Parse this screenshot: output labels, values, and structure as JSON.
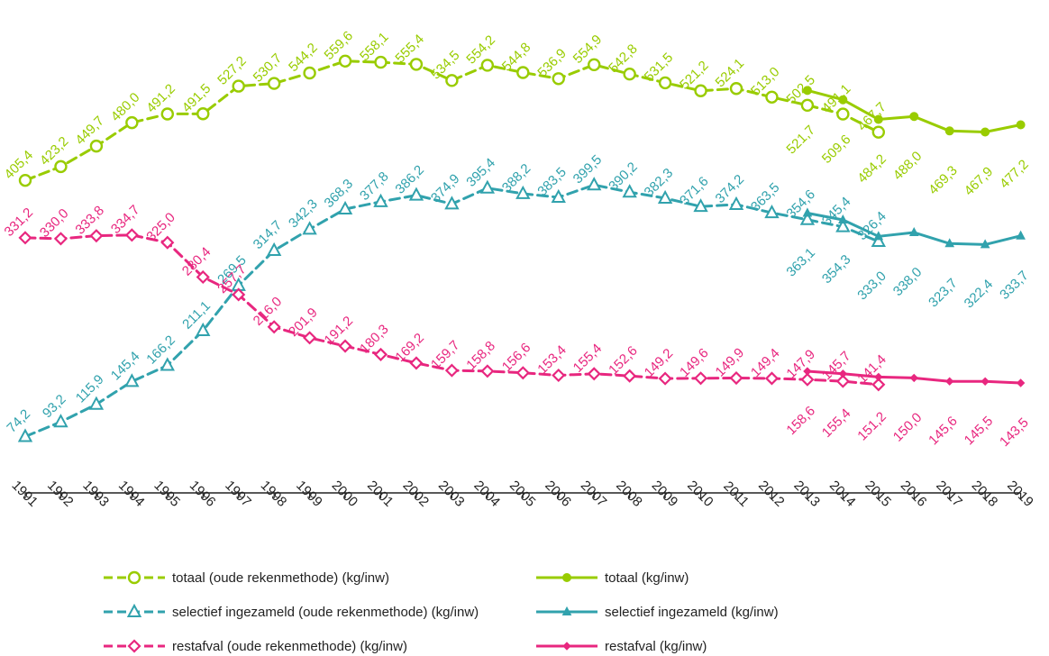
{
  "chart_data": {
    "type": "line",
    "title": "",
    "xlabel": "",
    "ylabel": "",
    "ylim": [
      0,
      600
    ],
    "grid": false,
    "legend_position": "bottom",
    "x": [
      "1991",
      "1992",
      "1993",
      "1994",
      "1995",
      "1996",
      "1997",
      "1998",
      "1999",
      "2000",
      "2001",
      "2002",
      "2003",
      "2004",
      "2005",
      "2006",
      "2007",
      "2008",
      "2009",
      "2010",
      "2011",
      "2012",
      "2013",
      "2014",
      "2015",
      "2016",
      "2017",
      "2018",
      "2019"
    ],
    "series": [
      {
        "name": "totaal (oude rekenmethode) (kg/inw)",
        "color": "#99cc00",
        "dashed": true,
        "marker": "circle",
        "label_side": "above",
        "x": [
          "1991",
          "1992",
          "1993",
          "1994",
          "1995",
          "1996",
          "1997",
          "1998",
          "1999",
          "2000",
          "2001",
          "2002",
          "2003",
          "2004",
          "2005",
          "2006",
          "2007",
          "2008",
          "2009",
          "2010",
          "2011",
          "2012",
          "2013",
          "2014",
          "2015"
        ],
        "values": [
          405.4,
          423.2,
          449.7,
          480.0,
          491.2,
          491.5,
          527.2,
          530.7,
          544.2,
          559.6,
          558.1,
          555.4,
          534.5,
          554.2,
          544.8,
          536.9,
          554.9,
          542.8,
          531.5,
          521.2,
          524.1,
          513.0,
          502.5,
          491.1,
          467.7
        ],
        "labels": [
          "405,4",
          "423,2",
          "449,7",
          "480,0",
          "491,2",
          "491,5",
          "527,2",
          "530,7",
          "544,2",
          "559,6",
          "558,1",
          "555,4",
          "534,5",
          "554,2",
          "544,8",
          "536,9",
          "554,9",
          "542,8",
          "531,5",
          "521,2",
          "524,1",
          "513,0",
          "502,5",
          "491,1",
          "467,7"
        ]
      },
      {
        "name": "totaal (kg/inw)",
        "color": "#99cc00",
        "dashed": false,
        "marker": "dot",
        "label_side": "below",
        "x": [
          "2013",
          "2014",
          "2015",
          "2016",
          "2017",
          "2018",
          "2019"
        ],
        "values": [
          521.7,
          509.6,
          484.2,
          488.0,
          469.3,
          467.9,
          477.2
        ],
        "labels": [
          "521,7",
          "509,6",
          "484,2",
          "488,0",
          "469,3",
          "467,9",
          "477,2"
        ]
      },
      {
        "name": "selectief ingezameld (oude rekenmethode) (kg/inw)",
        "color": "#31a2ad",
        "dashed": true,
        "marker": "triangle",
        "label_side": "above",
        "x": [
          "1991",
          "1992",
          "1993",
          "1994",
          "1995",
          "1996",
          "1997",
          "1998",
          "1999",
          "2000",
          "2001",
          "2002",
          "2003",
          "2004",
          "2005",
          "2006",
          "2007",
          "2008",
          "2009",
          "2010",
          "2011",
          "2012",
          "2013",
          "2014",
          "2015"
        ],
        "values": [
          74.2,
          93.2,
          115.9,
          145.4,
          166.2,
          211.1,
          269.5,
          314.7,
          342.3,
          368.3,
          377.8,
          386.2,
          374.9,
          395.4,
          388.2,
          383.5,
          399.5,
          390.2,
          382.3,
          371.6,
          374.2,
          363.5,
          354.6,
          345.4,
          326.4
        ],
        "labels": [
          "74,2",
          "93,2",
          "115,9",
          "145,4",
          "166,2",
          "211,1",
          "269,5",
          "314,7",
          "342,3",
          "368,3",
          "377,8",
          "386,2",
          "374,9",
          "395,4",
          "388,2",
          "383,5",
          "399,5",
          "390,2",
          "382,3",
          "371,6",
          "374,2",
          "363,5",
          "354,6",
          "345,4",
          "326,4"
        ]
      },
      {
        "name": "selectief ingezameld (kg/inw)",
        "color": "#31a2ad",
        "dashed": false,
        "marker": "filled-triangle",
        "label_side": "below",
        "x": [
          "2013",
          "2014",
          "2015",
          "2016",
          "2017",
          "2018",
          "2019"
        ],
        "values": [
          363.1,
          354.3,
          333.0,
          338.0,
          323.7,
          322.4,
          333.7
        ],
        "labels": [
          "363,1",
          "354,3",
          "333,0",
          "338,0",
          "323,7",
          "322,4",
          "333,7"
        ]
      },
      {
        "name": "restafval (oude rekenmethode) (kg/inw)",
        "color": "#e8277f",
        "dashed": true,
        "marker": "diamond",
        "label_side": "above",
        "x": [
          "1991",
          "1992",
          "1993",
          "1994",
          "1995",
          "1996",
          "1997",
          "1998",
          "1999",
          "2000",
          "2001",
          "2002",
          "2003",
          "2004",
          "2005",
          "2006",
          "2007",
          "2008",
          "2009",
          "2010",
          "2011",
          "2012",
          "2013",
          "2014",
          "2015"
        ],
        "values": [
          331.2,
          330.0,
          333.8,
          334.7,
          325.0,
          280.4,
          257.7,
          216.0,
          201.9,
          191.2,
          180.3,
          169.2,
          159.7,
          158.8,
          156.6,
          153.4,
          155.4,
          152.6,
          149.2,
          149.6,
          149.9,
          149.4,
          147.9,
          145.7,
          141.4
        ],
        "labels": [
          "331,2",
          "330,0",
          "333,8",
          "334,7",
          "325,0",
          "280,4",
          "257,7",
          "216,0",
          "201,9",
          "191,2",
          "180,3",
          "169,2",
          "159,7",
          "158,8",
          "156,6",
          "153,4",
          "155,4",
          "152,6",
          "149,2",
          "149,6",
          "149,9",
          "149,4",
          "147,9",
          "145,7",
          "141,4"
        ]
      },
      {
        "name": "restafval (kg/inw)",
        "color": "#e8277f",
        "dashed": false,
        "marker": "small-diamond",
        "label_side": "below",
        "x": [
          "2013",
          "2014",
          "2015",
          "2016",
          "2017",
          "2018",
          "2019"
        ],
        "values": [
          158.6,
          155.4,
          151.2,
          150.0,
          145.6,
          145.5,
          143.5
        ],
        "labels": [
          "158,6",
          "155,4",
          "151,2",
          "150,0",
          "145,6",
          "145,5",
          "143,5"
        ]
      }
    ]
  }
}
